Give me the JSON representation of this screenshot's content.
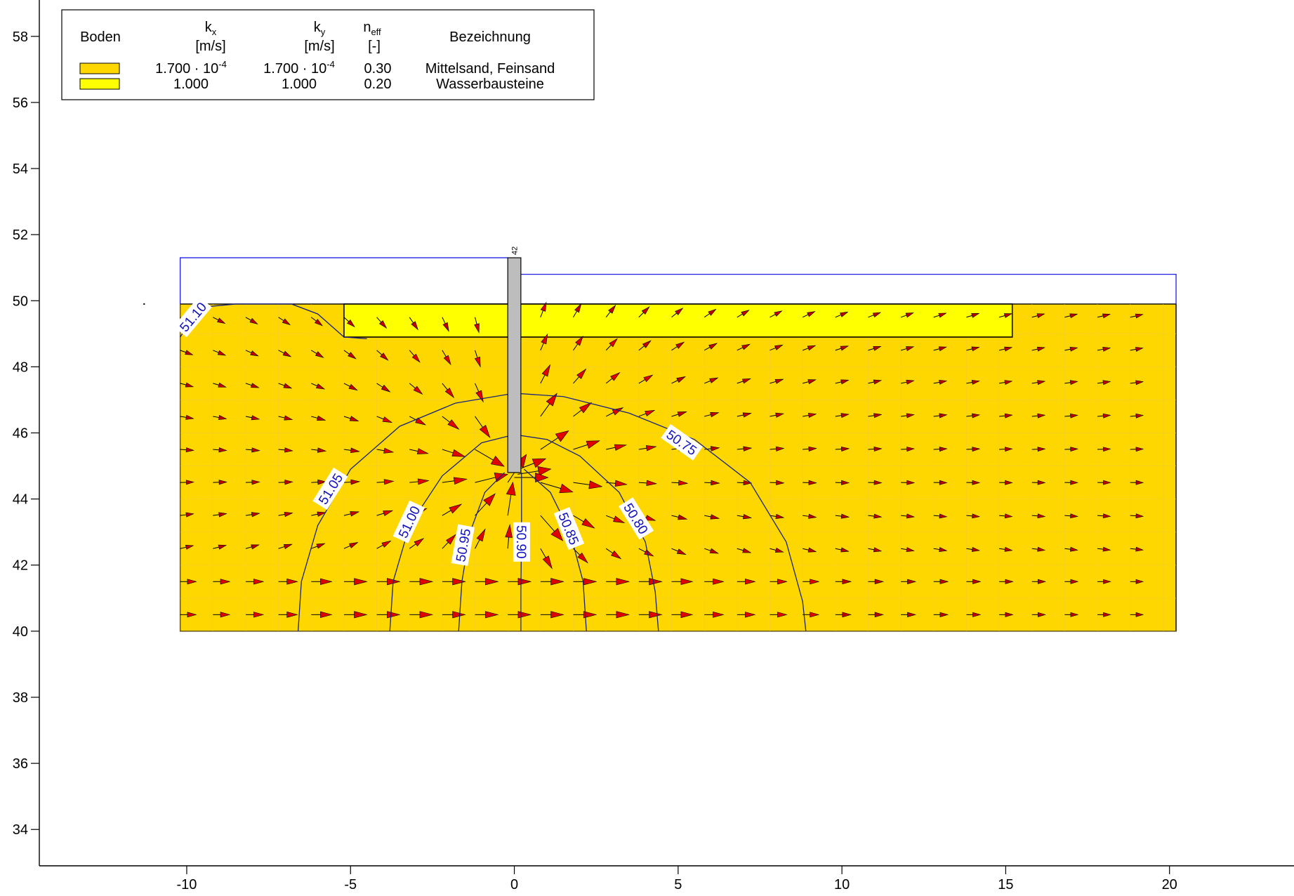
{
  "legend": {
    "headers": {
      "soil": "Boden",
      "kx": "k",
      "kx_sub": "x",
      "kx_unit": "[m/s]",
      "ky": "k",
      "ky_sub": "y",
      "ky_unit": "[m/s]",
      "neff": "n",
      "neff_sub": "eff",
      "neff_unit": "[-]",
      "desc": "Bezeichnung"
    },
    "rows": [
      {
        "color": "#FFD700",
        "kx": "1.700 · 10",
        "kx_exp": "-4",
        "ky": "1.700 · 10",
        "ky_exp": "-4",
        "neff": "0.30",
        "desc": "Mittelsand, Feinsand"
      },
      {
        "color": "#FFFF00",
        "kx": "1.000",
        "ky": "1.000",
        "neff": "0.20",
        "desc": "Wasserbausteine"
      }
    ]
  },
  "axes": {
    "x": {
      "min": -14.5,
      "max": 23.8,
      "ticks": [
        -10,
        -5,
        0,
        5,
        10,
        15,
        20
      ],
      "tick_labels": [
        "-10",
        "-5",
        "0",
        "5",
        "10",
        "15",
        "20"
      ]
    },
    "y": {
      "min": 32.9,
      "max": 59.1,
      "ticks": [
        34,
        36,
        38,
        40,
        42,
        44,
        46,
        48,
        50,
        52,
        54,
        56,
        58
      ],
      "tick_labels": [
        "34",
        "36",
        "38",
        "40",
        "42",
        "44",
        "46",
        "48",
        "50",
        "52",
        "54",
        "56",
        "58"
      ]
    }
  },
  "model": {
    "soil_top": 49.9,
    "soil_bottom": 40.0,
    "x_left": -10.2,
    "x_right": 20.2,
    "riprap": {
      "x1": -5.2,
      "x2": 15.2,
      "y_top": 49.9,
      "y_bottom": 48.9
    },
    "water_left": 51.3,
    "water_right": 50.8,
    "wall": {
      "x1": -0.2,
      "x2": 0.2,
      "y_top": 51.3,
      "y_bottom": 44.8,
      "label": "42"
    }
  },
  "isolines": [
    {
      "label": "51.10",
      "points": [
        [
          -10.2,
          48.9
        ],
        [
          -9.6,
          49.8
        ],
        [
          -8.5,
          49.9
        ],
        [
          -6.8,
          49.9
        ],
        [
          -6.0,
          49.6
        ],
        [
          -5.2,
          48.9
        ],
        [
          -4.5,
          48.85
        ]
      ]
    },
    {
      "label": "51.05",
      "points": [
        [
          -6.6,
          40.0
        ],
        [
          -6.5,
          41.5
        ],
        [
          -6.0,
          43.2
        ],
        [
          -5.0,
          44.9
        ],
        [
          -3.5,
          46.2
        ],
        [
          -1.8,
          46.9
        ],
        [
          0.0,
          47.2
        ],
        [
          1.5,
          47.1
        ],
        [
          3.5,
          46.6
        ],
        [
          5.5,
          45.8
        ],
        [
          7.2,
          44.5
        ],
        [
          8.3,
          42.7
        ],
        [
          8.8,
          40.9
        ],
        [
          8.9,
          40.0
        ]
      ]
    },
    {
      "label": "51.00",
      "points": [
        [
          -3.8,
          40.0
        ],
        [
          -3.7,
          41.5
        ],
        [
          -3.2,
          43.2
        ],
        [
          -2.2,
          44.7
        ],
        [
          -1.0,
          45.7
        ],
        [
          0.0,
          45.95
        ],
        [
          1.0,
          45.8
        ],
        [
          2.0,
          45.3
        ],
        [
          3.2,
          44.2
        ],
        [
          4.0,
          42.7
        ],
        [
          4.3,
          41.2
        ],
        [
          4.4,
          40.0
        ]
      ]
    },
    {
      "label": "50.95",
      "points": [
        [
          -1.7,
          40.0
        ],
        [
          -1.6,
          41.5
        ],
        [
          -1.35,
          43.0
        ],
        [
          -0.9,
          44.2
        ],
        [
          -0.3,
          44.8
        ]
      ]
    },
    {
      "label": "50.90",
      "points": [
        [
          0.22,
          44.8
        ],
        [
          0.22,
          43.0
        ],
        [
          0.2,
          41.3
        ],
        [
          0.2,
          40.0
        ]
      ]
    },
    {
      "label": "50.85",
      "points": [
        [
          0.3,
          44.9
        ],
        [
          1.1,
          44.2
        ],
        [
          1.7,
          43.0
        ],
        [
          2.1,
          41.5
        ],
        [
          2.2,
          40.0
        ]
      ]
    }
  ],
  "isoline_labels": [
    {
      "text": "51.10",
      "x": -9.8,
      "y": 49.5,
      "angle": -50
    },
    {
      "text": "51.05",
      "x": -5.6,
      "y": 44.3,
      "angle": -58
    },
    {
      "text": "51.00",
      "x": -3.2,
      "y": 43.3,
      "angle": -65
    },
    {
      "text": "50.95",
      "x": -1.55,
      "y": 42.6,
      "angle": -80
    },
    {
      "text": "50.90",
      "x": 0.2,
      "y": 42.7,
      "angle": 90
    },
    {
      "text": "50.85",
      "x": 1.65,
      "y": 43.1,
      "angle": 68
    },
    {
      "text": "50.80",
      "x": 3.7,
      "y": 43.4,
      "angle": 58
    },
    {
      "text": "50.75",
      "x": 5.1,
      "y": 45.7,
      "angle": 35
    }
  ],
  "flow_arrows": {
    "big_red_near_tip": [
      [
        0.0,
        44.85,
        0.9,
        0.35
      ],
      [
        0.1,
        44.75,
        1.3,
        0.2
      ],
      [
        0.0,
        44.65,
        0.7,
        0.0
      ]
    ]
  }
}
